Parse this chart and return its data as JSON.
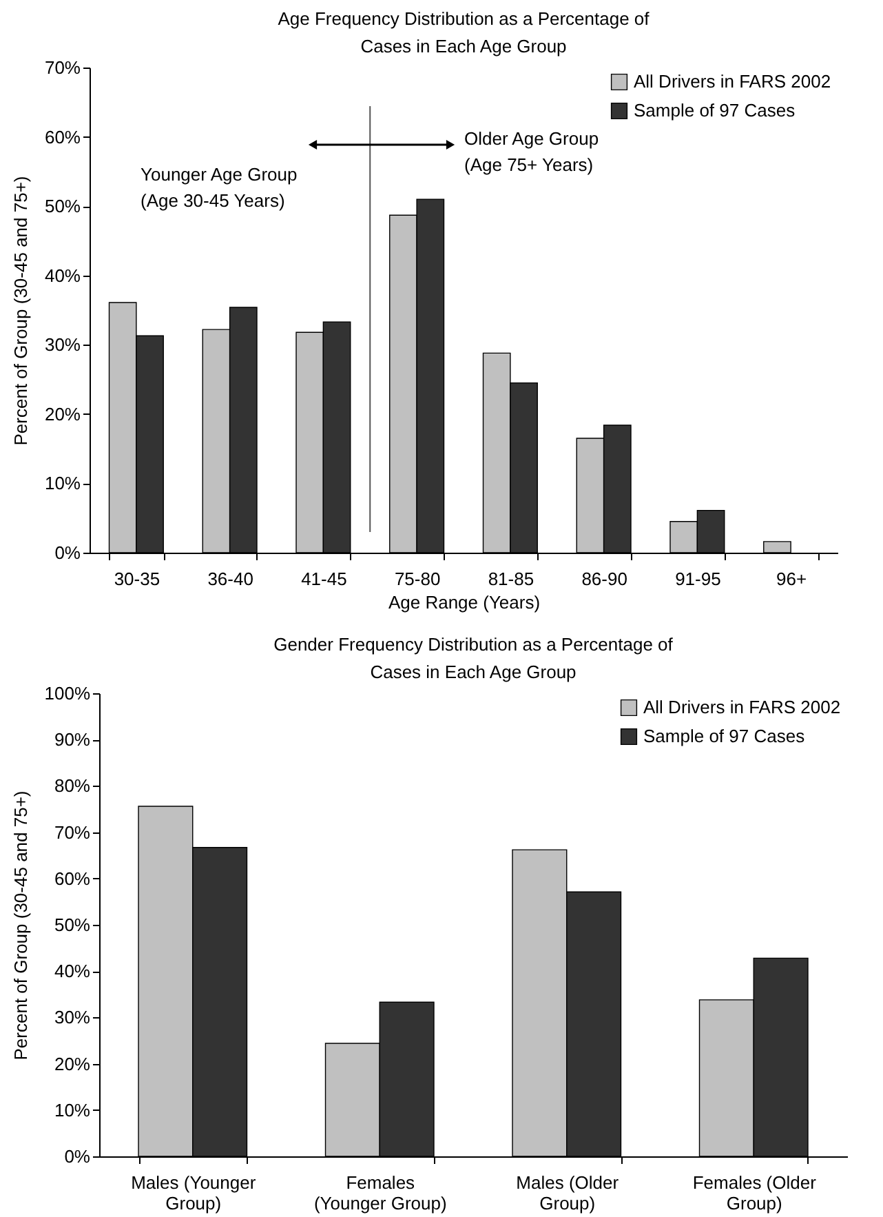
{
  "chart_data": [
    {
      "type": "bar",
      "title": "Age Frequency Distribution as a Percentage of Cases in Each Age Group",
      "xlabel": "Age Range (Years)",
      "ylabel": "Percent of Group (30-45 and 75+)",
      "categories": [
        "30-35",
        "36-40",
        "41-45",
        "75-80",
        "81-85",
        "86-90",
        "91-95",
        "96+"
      ],
      "series": [
        {
          "name": "All Drivers in FARS 2002",
          "color": "#c0c0c0",
          "values": [
            36.1,
            32.2,
            31.8,
            48.7,
            28.8,
            16.5,
            4.5,
            1.6
          ]
        },
        {
          "name": "Sample of 97 Cases",
          "color": "#333333",
          "values": [
            31.3,
            35.4,
            33.3,
            51.0,
            24.5,
            18.4,
            6.1,
            null
          ]
        }
      ],
      "ylim": [
        0,
        70
      ],
      "yticks": [
        {
          "value": 0,
          "label": "0%"
        },
        {
          "value": 10,
          "label": "10%"
        },
        {
          "value": 20,
          "label": "20%"
        },
        {
          "value": 30,
          "label": "30%"
        },
        {
          "value": 40,
          "label": "40%"
        },
        {
          "value": 50,
          "label": "50%"
        },
        {
          "value": 60,
          "label": "60%"
        },
        {
          "value": 70,
          "label": "70%"
        }
      ],
      "legend": "right",
      "annotations": [
        "Younger Age Group (Age 30-45 Years)",
        "Older Age Group (Age 75+ Years)"
      ]
    },
    {
      "type": "bar",
      "title": "Gender Frequency Distribution as a Percentage of Cases in Each Age Group",
      "ylabel": "Percent of Group (30-45 and 75+)",
      "categories": [
        "Males (Younger Group)",
        "Females (Younger Group)",
        "Males (Older Group)",
        "Females (Older Group)"
      ],
      "series": [
        {
          "name": "All Drivers in FARS 2002",
          "color": "#c0c0c0",
          "values": [
            75.6,
            24.4,
            66.2,
            33.8
          ]
        },
        {
          "name": "Sample of 97 Cases",
          "color": "#333333",
          "values": [
            66.7,
            33.3,
            57.1,
            42.8
          ]
        }
      ],
      "ylim": [
        0,
        100
      ],
      "yticks": [
        {
          "value": 0,
          "label": "0%"
        },
        {
          "value": 10,
          "label": "10%"
        },
        {
          "value": 20,
          "label": "20%"
        },
        {
          "value": 30,
          "label": "30%"
        },
        {
          "value": 40,
          "label": "40%"
        },
        {
          "value": 50,
          "label": "50%"
        },
        {
          "value": 60,
          "label": "60%"
        },
        {
          "value": 70,
          "label": "70%"
        },
        {
          "value": 80,
          "label": "80%"
        },
        {
          "value": 90,
          "label": "90%"
        },
        {
          "value": 100,
          "label": "100%"
        }
      ],
      "legend": "top right"
    }
  ]
}
